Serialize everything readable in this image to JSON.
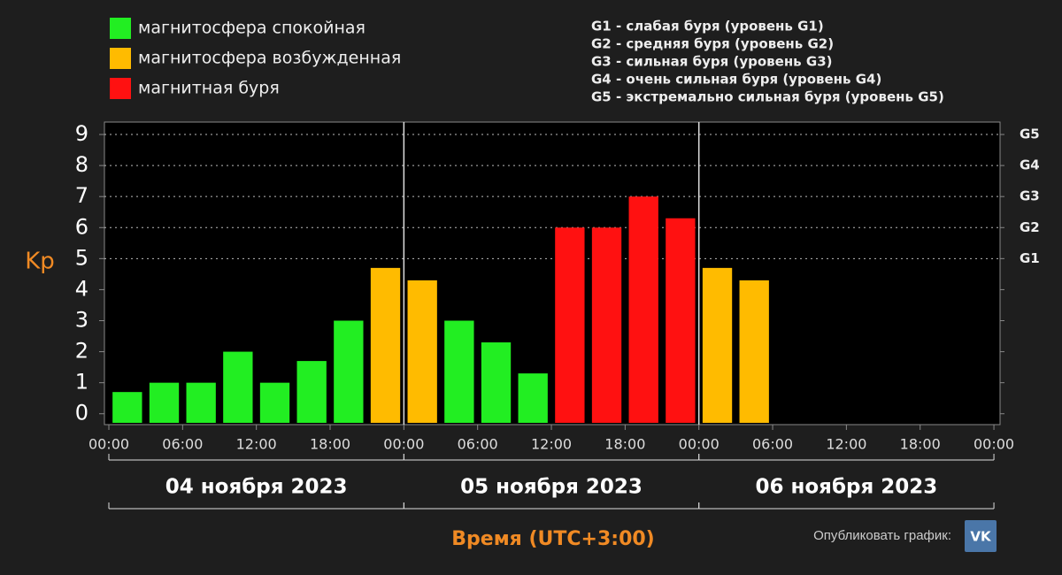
{
  "chart_data": {
    "type": "bar",
    "y_label": "Kp",
    "x_label": "Время (UTC+3:00)",
    "legend": [
      {
        "name": "магнитосфера спокойная",
        "color": "#22ee22"
      },
      {
        "name": "магнитосфера возбужденная",
        "color": "#ffbb00"
      },
      {
        "name": "магнитная буря",
        "color": "#ff1111"
      }
    ],
    "storm_levels": [
      "G1 - слабая буря (уровень G1)",
      "G2 - средняя буря (уровень G2)",
      "G3 - сильная буря (уровень G3)",
      "G4 - очень сильная буря (уровень G4)",
      "G5 - экстремально сильная буря (уровень G5)"
    ],
    "x": [
      1.5,
      4.5,
      7.5,
      10.5,
      13.5,
      16.5,
      19.5,
      22.5,
      25.5,
      28.5,
      31.5,
      34.5,
      37.5,
      40.5,
      43.5,
      46.5,
      49.5,
      52.5
    ],
    "values": [
      0.7,
      1,
      1,
      2,
      1,
      1.7,
      3,
      4.7,
      4.3,
      3,
      2.3,
      1.3,
      6,
      6,
      7,
      6.3,
      4.7,
      4.3
    ],
    "colors": [
      "#22ee22",
      "#22ee22",
      "#22ee22",
      "#22ee22",
      "#22ee22",
      "#22ee22",
      "#22ee22",
      "#ffbb00",
      "#ffbb00",
      "#22ee22",
      "#22ee22",
      "#22ee22",
      "#ff1111",
      "#ff1111",
      "#ff1111",
      "#ff1111",
      "#ffbb00",
      "#ffbb00"
    ],
    "xlim": [
      -0.36,
      72.5
    ],
    "xticks": [
      {
        "value": 0,
        "label": "00:00"
      },
      {
        "value": 6,
        "label": "06:00"
      },
      {
        "value": 12,
        "label": "12:00"
      },
      {
        "value": 18,
        "label": "18:00"
      },
      {
        "value": 24,
        "label": "00:00"
      },
      {
        "value": 30,
        "label": "06:00"
      },
      {
        "value": 36,
        "label": "12:00"
      },
      {
        "value": 42,
        "label": "18:00"
      },
      {
        "value": 48,
        "label": "00:00"
      },
      {
        "value": 54,
        "label": "06:00"
      },
      {
        "value": 60,
        "label": "12:00"
      },
      {
        "value": 66,
        "label": "18:00"
      },
      {
        "value": 72,
        "label": "00:00"
      }
    ],
    "ylim": [
      -0.35,
      9.4
    ],
    "yticks": [
      0,
      1,
      2,
      3,
      4,
      5,
      6,
      7,
      8,
      9
    ],
    "y2lim": [
      -0.35,
      9.4
    ],
    "y2ticks": [
      {
        "value": 5,
        "label": "G1"
      },
      {
        "value": 6,
        "label": "G2"
      },
      {
        "value": 7,
        "label": "G3"
      },
      {
        "value": 8,
        "label": "G4"
      },
      {
        "value": 9,
        "label": "G5"
      }
    ],
    "grid": true,
    "days": [
      {
        "label": "04 ноября 2023",
        "from": 0,
        "to": 24
      },
      {
        "label": "05 ноября 2023",
        "from": 24,
        "to": 48
      },
      {
        "label": "06 ноября 2023",
        "from": 48,
        "to": 72
      }
    ],
    "share_text": "Опубликовать график:",
    "share_button": "VK"
  }
}
